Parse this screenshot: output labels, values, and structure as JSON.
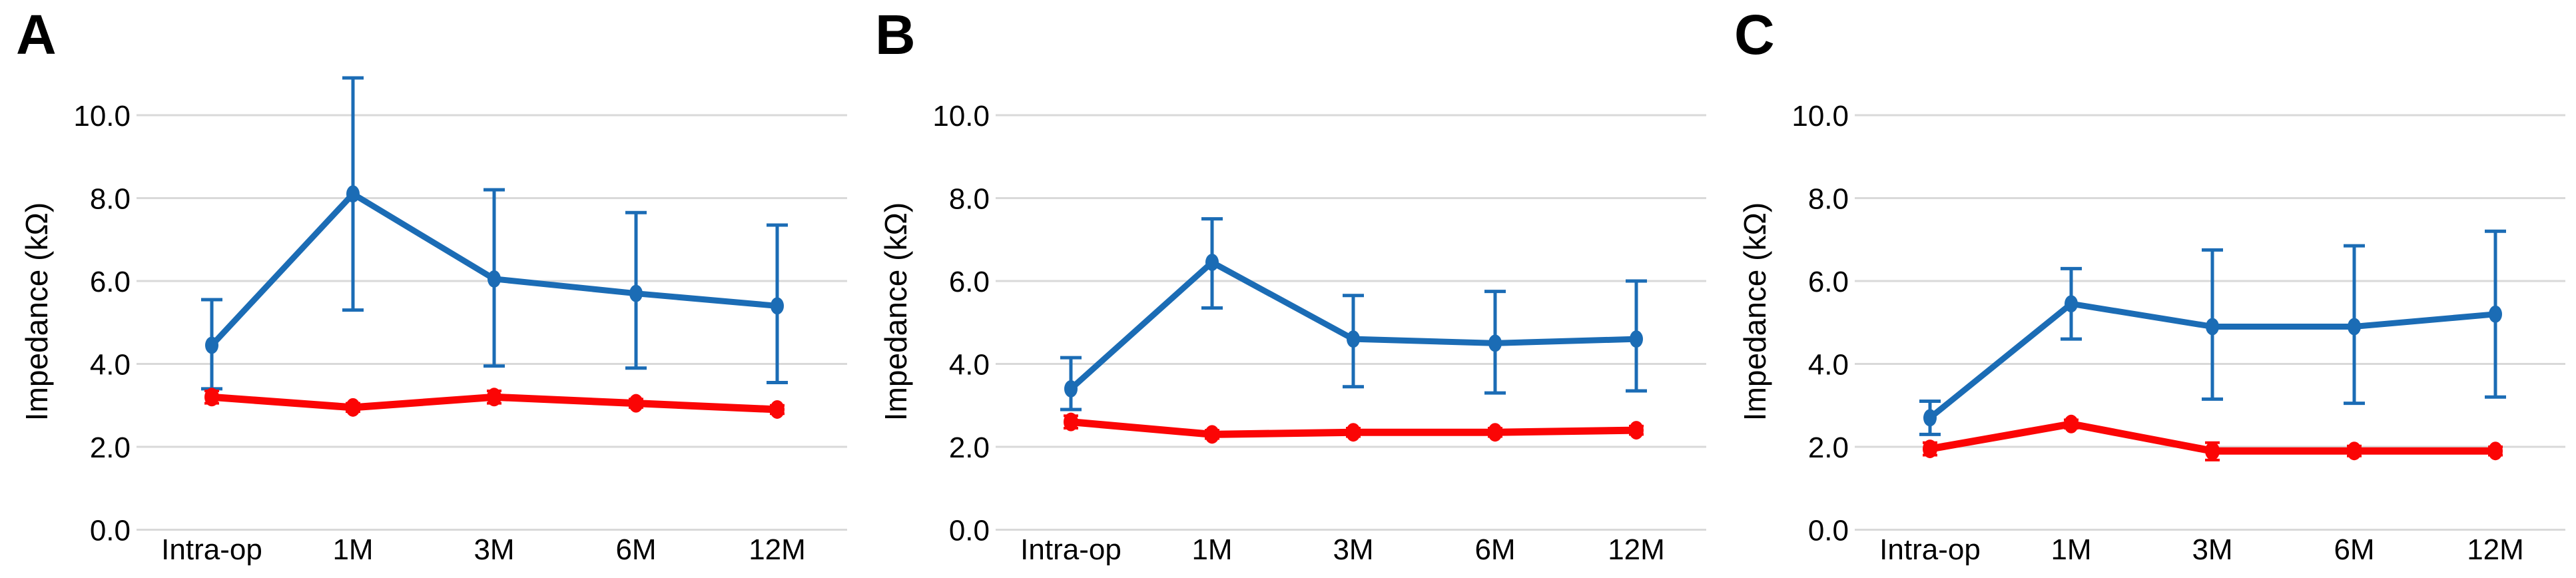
{
  "figure": {
    "background": "#ffffff",
    "text_color": "#000000",
    "gridline_color": "#d9d9d9"
  },
  "chart_data": [
    {
      "panel": "A",
      "type": "line",
      "title": "",
      "xlabel": "",
      "ylabel": "Impedance (kΩ)",
      "ylim": [
        0,
        11
      ],
      "yticks": [
        0,
        2,
        4,
        6,
        8,
        10
      ],
      "ytick_labels": [
        "0.0",
        "2.0",
        "4.0",
        "6.0",
        "8.0",
        "10.0"
      ],
      "grid": true,
      "legend": "none",
      "categories": [
        "Intra-op",
        "1M",
        "3M",
        "6M",
        "12M"
      ],
      "series": [
        {
          "name": "blue-series",
          "color": "#1b6cb5",
          "values": [
            4.45,
            8.1,
            6.05,
            5.7,
            5.4
          ],
          "err_low": [
            3.4,
            5.3,
            3.95,
            3.9,
            3.55
          ],
          "err_high": [
            5.55,
            10.9,
            8.2,
            7.65,
            7.35
          ]
        },
        {
          "name": "red-series",
          "color": "#fb0505",
          "values": [
            3.2,
            2.95,
            3.2,
            3.05,
            2.9
          ],
          "err_low": [
            3.05,
            2.85,
            3.05,
            2.95,
            2.8
          ],
          "err_high": [
            3.35,
            3.05,
            3.35,
            3.15,
            3.0
          ]
        }
      ]
    },
    {
      "panel": "B",
      "type": "line",
      "title": "",
      "xlabel": "",
      "ylabel": "Impedance (kΩ)",
      "ylim": [
        0,
        11
      ],
      "yticks": [
        0,
        2,
        4,
        6,
        8,
        10
      ],
      "ytick_labels": [
        "0.0",
        "2.0",
        "4.0",
        "6.0",
        "8.0",
        "10.0"
      ],
      "grid": true,
      "legend": "none",
      "categories": [
        "Intra-op",
        "1M",
        "3M",
        "6M",
        "12M"
      ],
      "series": [
        {
          "name": "blue-series",
          "color": "#1b6cb5",
          "values": [
            3.4,
            6.45,
            4.6,
            4.5,
            4.6
          ],
          "err_low": [
            2.9,
            5.35,
            3.45,
            3.3,
            3.35
          ],
          "err_high": [
            4.15,
            7.5,
            5.65,
            5.75,
            6.0
          ]
        },
        {
          "name": "red-series",
          "color": "#fb0505",
          "values": [
            2.6,
            2.3,
            2.35,
            2.35,
            2.4
          ],
          "err_low": [
            2.45,
            2.2,
            2.25,
            2.25,
            2.3
          ],
          "err_high": [
            2.75,
            2.4,
            2.45,
            2.45,
            2.5
          ]
        }
      ]
    },
    {
      "panel": "C",
      "type": "line",
      "title": "",
      "xlabel": "",
      "ylabel": "Impedance (kΩ)",
      "ylim": [
        0,
        11
      ],
      "yticks": [
        0,
        2,
        4,
        6,
        8,
        10
      ],
      "ytick_labels": [
        "0.0",
        "2.0",
        "4.0",
        "6.0",
        "8.0",
        "10.0"
      ],
      "grid": true,
      "legend": "none",
      "categories": [
        "Intra-op",
        "1M",
        "3M",
        "6M",
        "12M"
      ],
      "series": [
        {
          "name": "blue-series",
          "color": "#1b6cb5",
          "values": [
            2.7,
            5.45,
            4.9,
            4.9,
            5.2
          ],
          "err_low": [
            2.3,
            4.6,
            3.15,
            3.05,
            3.2
          ],
          "err_high": [
            3.1,
            6.3,
            6.75,
            6.85,
            7.2
          ]
        },
        {
          "name": "red-series",
          "color": "#fb0505",
          "values": [
            1.95,
            2.55,
            1.9,
            1.9,
            1.9
          ],
          "err_low": [
            1.8,
            2.45,
            1.68,
            1.78,
            1.8
          ],
          "err_high": [
            2.1,
            2.65,
            2.1,
            2.02,
            2.0
          ]
        }
      ]
    }
  ]
}
